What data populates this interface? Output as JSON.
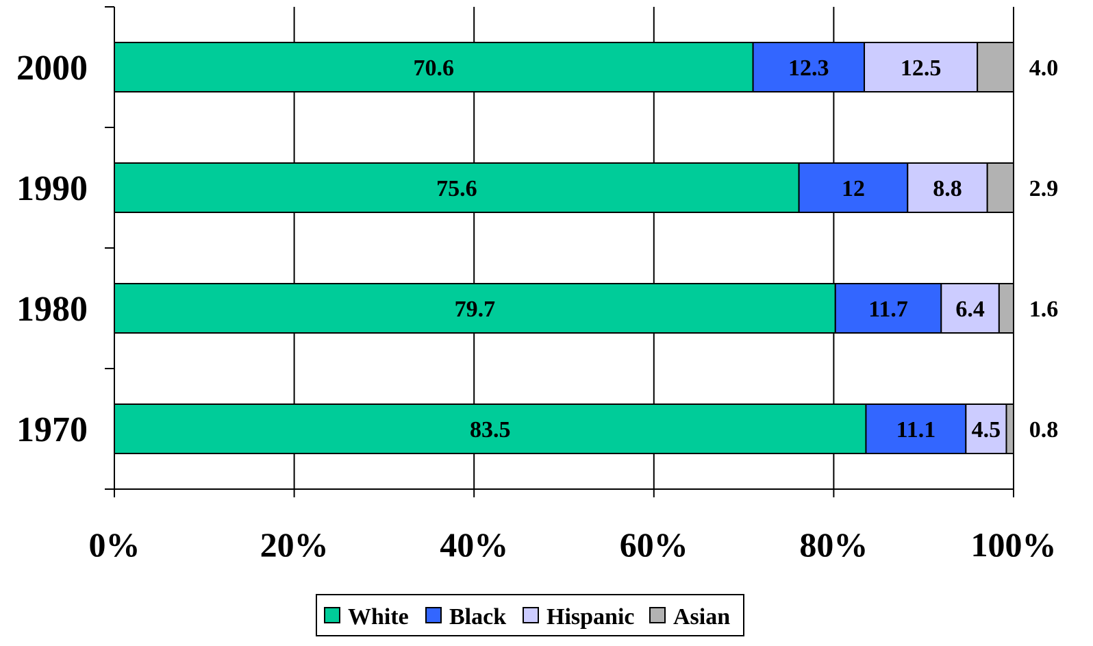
{
  "chart_data": {
    "type": "bar",
    "orientation": "horizontal",
    "stacked": "percent",
    "title": "",
    "xlabel": "",
    "ylabel": "",
    "categories": [
      "2000",
      "1990",
      "1980",
      "1970"
    ],
    "series": [
      {
        "name": "White",
        "values": [
          70.6,
          75.6,
          79.7,
          83.5
        ],
        "labels": [
          "70.6",
          "75.6",
          "79.7",
          "83.5"
        ],
        "color": "#00CC99"
      },
      {
        "name": "Black",
        "values": [
          12.3,
          12,
          11.7,
          11.1
        ],
        "labels": [
          "12.3",
          "12",
          "11.7",
          "11.1"
        ],
        "color": "#3366FF"
      },
      {
        "name": "Hispanic",
        "values": [
          12.5,
          8.8,
          6.4,
          4.5
        ],
        "labels": [
          "12.5",
          "8.8",
          "6.4",
          "4.5"
        ],
        "color": "#CCCCFF"
      },
      {
        "name": "Asian",
        "values": [
          4.0,
          2.9,
          1.6,
          0.8
        ],
        "labels": [
          "4.0",
          "2.9",
          "1.6",
          "0.8"
        ],
        "color": "#B2B2B2"
      }
    ],
    "xlim": [
      0,
      100
    ],
    "xticks": [
      0,
      20,
      40,
      60,
      80,
      100
    ],
    "xtick_labels": [
      "0%",
      "20%",
      "40%",
      "60%",
      "80%",
      "100%"
    ],
    "grid": "vertical",
    "legend": "bottom",
    "outside_label_series": "Asian"
  }
}
